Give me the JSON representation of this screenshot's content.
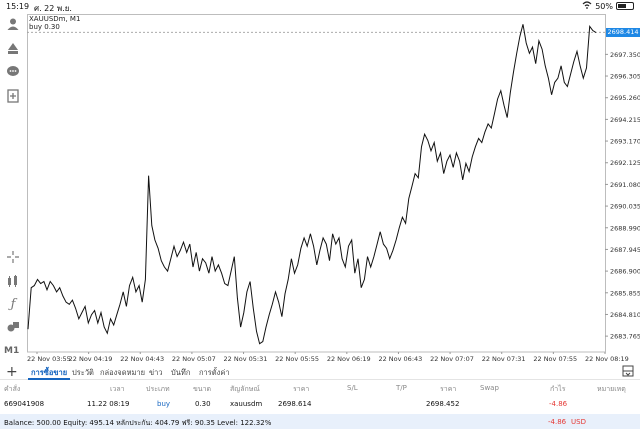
{
  "status_bar": {
    "time": "15:19",
    "date": "ศ. 22 พ.ย.",
    "battery": "50%"
  },
  "chart_data": {
    "type": "line",
    "symbol": "XAUUSDm, M1",
    "position_label": "buy 0.30",
    "current_price": "2698.414",
    "y_ticks": [
      "2697.350",
      "2696.305",
      "2695.260",
      "2694.215",
      "2693.170",
      "2692.125",
      "2691.080",
      "2690.035",
      "2688.990",
      "2687.945",
      "2686.900",
      "2685.855",
      "2684.810",
      "2683.765"
    ],
    "x_ticks": [
      "22 Nov 03:55",
      "22 Nov 04:19",
      "22 Nov 04:43",
      "22 Nov 05:07",
      "22 Nov 05:31",
      "22 Nov 05:55",
      "22 Nov 06:19",
      "22 Nov 06:43",
      "22 Nov 07:07",
      "22 Nov 07:31",
      "22 Nov 07:55",
      "22 Nov 08:19"
    ],
    "ylim": [
      2683.0,
      2699.2
    ],
    "values": [
      2684.1,
      2686.1,
      2686.2,
      2686.5,
      2686.3,
      2686.4,
      2686.0,
      2686.4,
      2686.2,
      2685.9,
      2686.1,
      2685.7,
      2685.4,
      2685.3,
      2685.5,
      2685.1,
      2684.6,
      2684.9,
      2685.2,
      2684.4,
      2684.8,
      2685.0,
      2684.4,
      2684.9,
      2684.2,
      2683.9,
      2684.6,
      2684.3,
      2684.8,
      2685.3,
      2685.9,
      2685.2,
      2686.2,
      2686.6,
      2685.9,
      2686.2,
      2685.4,
      2686.5,
      2691.5,
      2689.1,
      2688.4,
      2688.0,
      2687.4,
      2687.1,
      2686.9,
      2687.5,
      2688.1,
      2687.6,
      2687.9,
      2688.3,
      2687.8,
      2688.2,
      2687.1,
      2687.8,
      2686.9,
      2687.5,
      2687.3,
      2686.8,
      2687.6,
      2686.9,
      2687.2,
      2686.8,
      2686.3,
      2686.2,
      2686.9,
      2687.6,
      2685.6,
      2684.2,
      2684.9,
      2685.9,
      2686.4,
      2685.1,
      2684.0,
      2683.4,
      2683.5,
      2684.2,
      2684.8,
      2685.3,
      2685.9,
      2685.4,
      2684.7,
      2685.8,
      2686.5,
      2687.5,
      2686.8,
      2687.2,
      2688.0,
      2688.5,
      2688.1,
      2688.7,
      2688.1,
      2687.2,
      2687.9,
      2688.5,
      2688.2,
      2687.4,
      2688.7,
      2688.2,
      2688.5,
      2687.5,
      2687.1,
      2688.1,
      2688.4,
      2686.8,
      2687.5,
      2686.1,
      2686.5,
      2687.6,
      2687.1,
      2687.6,
      2688.2,
      2688.8,
      2688.2,
      2688.0,
      2687.5,
      2687.9,
      2688.4,
      2689.0,
      2689.5,
      2689.2,
      2690.4,
      2691.0,
      2691.6,
      2691.4,
      2692.9,
      2693.5,
      2693.2,
      2692.7,
      2693.1,
      2692.2,
      2692.6,
      2691.6,
      2692.2,
      2692.5,
      2691.9,
      2692.6,
      2692.2,
      2691.3,
      2692.1,
      2691.7,
      2692.4,
      2692.9,
      2693.3,
      2693.1,
      2693.6,
      2694.0,
      2693.8,
      2694.5,
      2695.2,
      2695.6,
      2694.9,
      2694.3,
      2695.5,
      2696.5,
      2697.4,
      2698.2,
      2698.8,
      2697.9,
      2697.4,
      2697.7,
      2696.9,
      2698.0,
      2697.6,
      2696.8,
      2696.2,
      2695.4,
      2696.0,
      2696.2,
      2696.8,
      2696.0,
      2695.8,
      2696.4,
      2697.0,
      2697.5,
      2696.8,
      2696.2,
      2696.7,
      2698.7,
      2698.5,
      2698.4
    ]
  },
  "tabs": {
    "active": "การซื้อขาย",
    "items": [
      "การซื้อขาย",
      "ประวัติ",
      "กล่องจดหมาย",
      "ข่าว",
      "บันทึก",
      "การตั้งค่า"
    ]
  },
  "table": {
    "headers": [
      "คำสั่ง",
      "เวลา",
      "ประเภท",
      "ขนาด",
      "สัญลักษณ์",
      "ราคา",
      "S/L",
      "T/P",
      "ราคา",
      "Swap",
      "กำไร",
      "หมายเหตุ"
    ],
    "row": {
      "order": "669041908",
      "time": "11.22 08:19",
      "type": "buy",
      "size": "0.30",
      "symbol": "xauusdm",
      "price_open": "2698.614",
      "sl": "",
      "tp": "",
      "price_current": "2698.452",
      "swap": "",
      "profit": "-4.86",
      "comment": ""
    }
  },
  "balance": {
    "text": "Balance: 500.00 Equity: 495.14 หลักประกัน: 404.79 ฟรี: 90.35 Level: 122.32%",
    "profit": "-4.86",
    "currency": "USD"
  },
  "colors": {
    "accent": "#1565c0",
    "loss": "#e53935",
    "price_box": "#1e88e5",
    "balance_bg": "#e8f0fb"
  }
}
